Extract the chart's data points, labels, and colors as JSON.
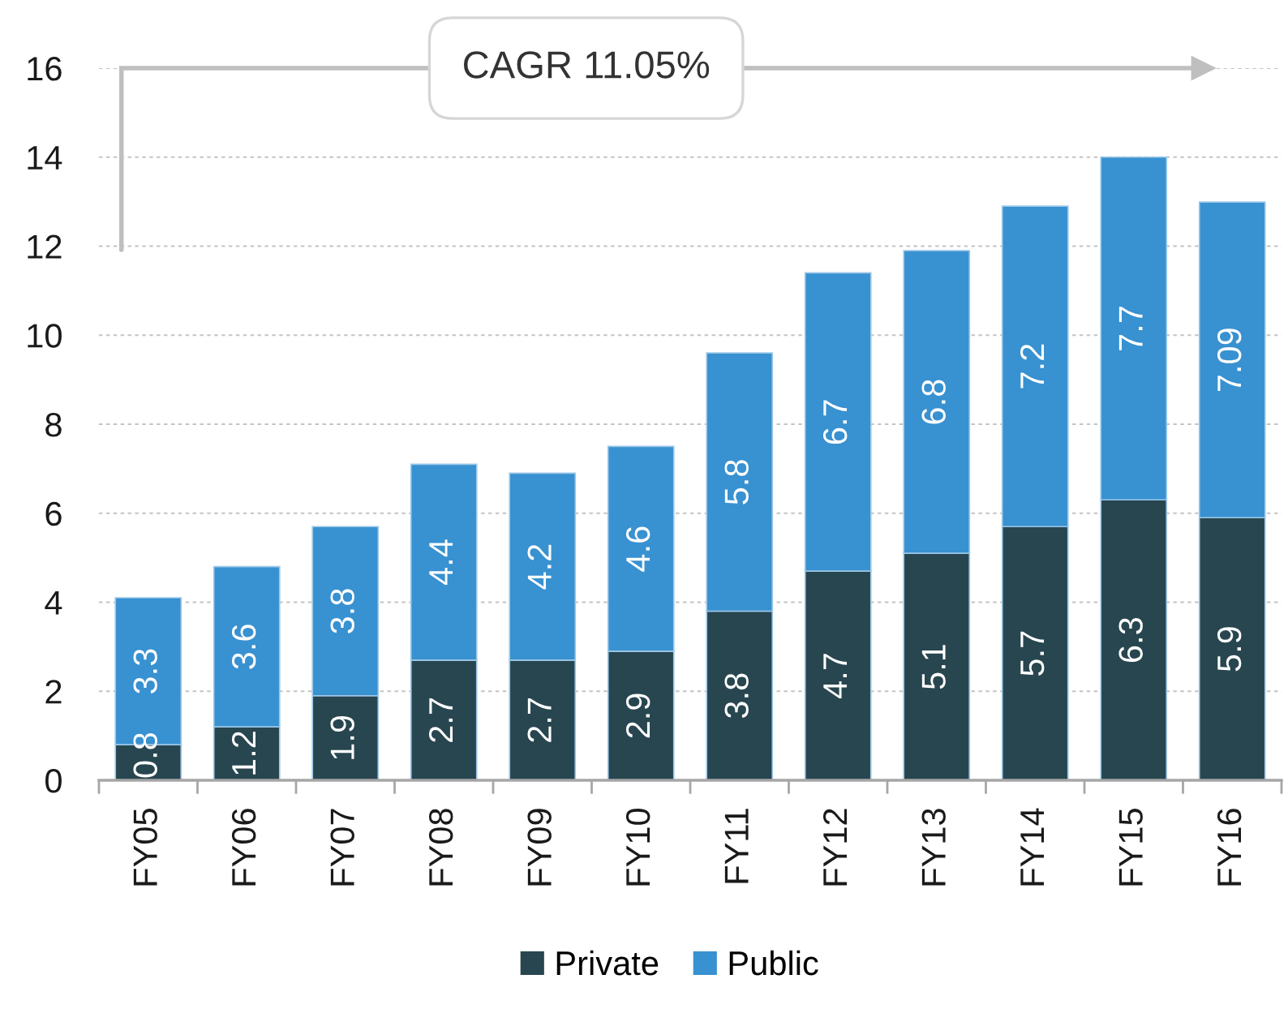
{
  "chart_data": {
    "type": "bar",
    "stacked": true,
    "categories": [
      "FY05",
      "FY06",
      "FY07",
      "FY08",
      "FY09",
      "FY10",
      "FY11",
      "FY12",
      "FY13",
      "FY14",
      "FY15",
      "FY16"
    ],
    "series": [
      {
        "name": "Private",
        "color": "#28464f",
        "values": [
          0.8,
          1.2,
          1.9,
          2.7,
          2.7,
          2.9,
          3.8,
          4.7,
          5.1,
          5.7,
          6.3,
          5.9
        ]
      },
      {
        "name": "Public",
        "color": "#3891d0",
        "values": [
          3.3,
          3.6,
          3.8,
          4.4,
          4.2,
          4.6,
          5.8,
          6.7,
          6.8,
          7.2,
          7.7,
          7.09
        ]
      }
    ],
    "ylim": [
      0,
      16
    ],
    "yticks": [
      0,
      2,
      4,
      6,
      8,
      10,
      12,
      14,
      16
    ],
    "grid": "y",
    "legend": "bottom",
    "data_labels": true,
    "annotations": [
      "CAGR 11.05%"
    ]
  }
}
